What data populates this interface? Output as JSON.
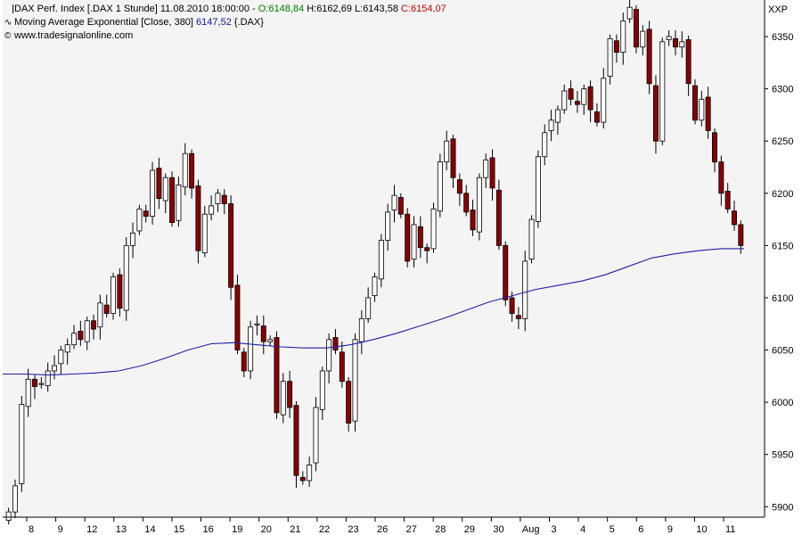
{
  "legend": {
    "title": "DAX Perf. Index [.DAX  1 Stunde] 11.08.2010 18:00:00 - ",
    "open": "O:6148,84",
    "high": "H:6162,69",
    "low": "L:6143,58",
    "close": "C:6154,07",
    "ma_label": "Moving Average Exponential [Close, 380]",
    "ma_value": "6147,52",
    "ma_symbol": "{.DAX}",
    "source": "www.tradesignalonline.com"
  },
  "colors": {
    "up": "#ffffff",
    "down": "#8b0000",
    "ma": "#1f1fa8",
    "background": "#f4f4f4"
  },
  "chart_data": {
    "type": "candlestick",
    "title": "DAX Perf. Index [.DAX  1 Stunde]",
    "y_axis_label": "XXP",
    "ylim": [
      5890,
      6385
    ],
    "y_ticks": [
      5900,
      5950,
      6000,
      6050,
      6100,
      6150,
      6200,
      6250,
      6300,
      6350
    ],
    "x_ticks": [
      "8",
      "9",
      "12",
      "13",
      "14",
      "15",
      "16",
      "19",
      "20",
      "21",
      "22",
      "23",
      "26",
      "27",
      "28",
      "29",
      "30",
      "Aug",
      "3",
      "4",
      "5",
      "6",
      "9",
      "10",
      "11"
    ],
    "series": [
      {
        "name": "DAX",
        "kind": "ohlc",
        "close": [
          5895,
          5920,
          5998,
          6022,
          6015,
          6018,
          6030,
          6035,
          6050,
          6055,
          6066,
          6060,
          6078,
          6070,
          6095,
          6085,
          6120,
          6090,
          6150,
          6162,
          6185,
          6178,
          6222,
          6195,
          6215,
          6172,
          6208,
          6238,
          6205,
          6145,
          6180,
          6188,
          6200,
          6190,
          6110,
          6050,
          6030,
          6072,
          6075,
          6058,
          6060,
          5990,
          6020,
          5995,
          5930,
          5925,
          5940,
          5995,
          6030,
          6060,
          6050,
          6020,
          5980,
          6060,
          6080,
          6100,
          6120,
          6155,
          6182,
          6198,
          6180,
          6135,
          6170,
          6148,
          6145,
          6185,
          6230,
          6250,
          6215,
          6200,
          6182,
          6165,
          6215,
          6232,
          6205,
          6150,
          6098,
          6085,
          6080,
          6135,
          6175,
          6235,
          6258,
          6270,
          6280,
          6298,
          6290,
          6285,
          6300,
          6280,
          6268,
          6310,
          6348,
          6335,
          6365,
          6378,
          6340,
          6355,
          6305,
          6250,
          6345,
          6350,
          6340,
          6345,
          6305,
          6270,
          6290,
          6260,
          6230,
          6200,
          6185,
          6170,
          6150
        ]
      },
      {
        "name": "Moving Average Exponential [Close, 380]",
        "kind": "line",
        "values": [
          6027,
          6027,
          6026,
          6027,
          6028,
          6030,
          6035,
          6042,
          6050,
          6056,
          6057,
          6055,
          6053,
          6052,
          6052,
          6055,
          6060,
          6066,
          6073,
          6080,
          6088,
          6096,
          6102,
          6108,
          6112,
          6116,
          6122,
          6130,
          6138,
          6142,
          6145,
          6147,
          6147
        ]
      }
    ]
  }
}
